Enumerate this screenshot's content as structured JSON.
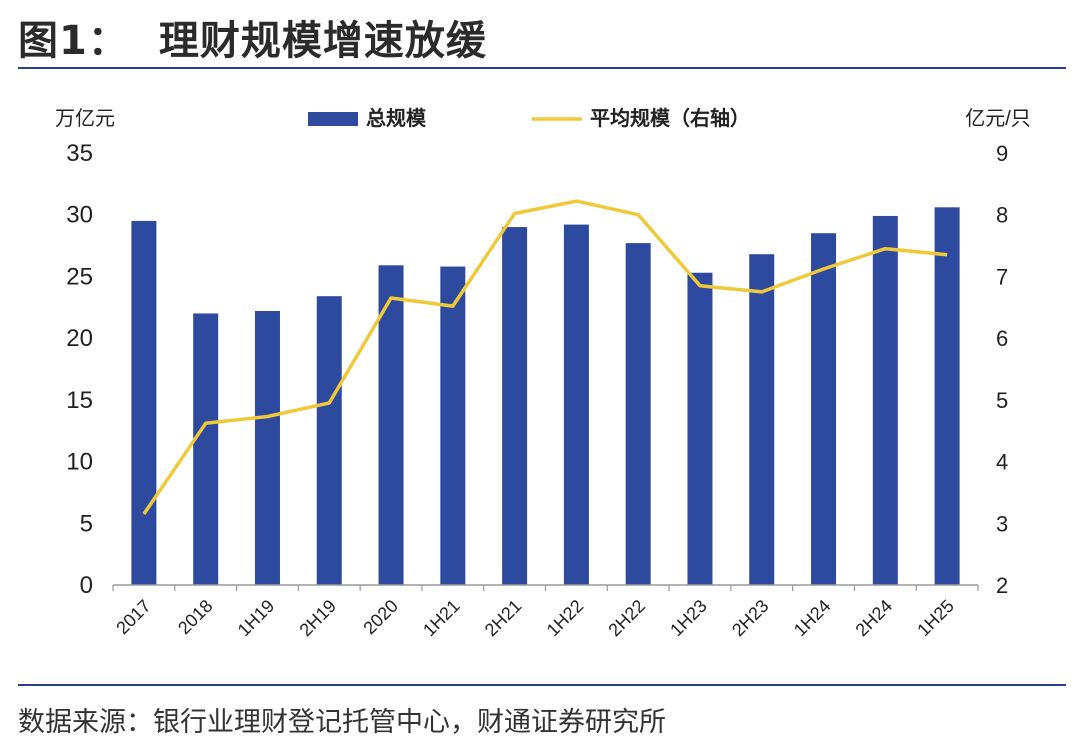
{
  "header": {
    "figure_label": "图1：",
    "title": "理财规模增速放缓"
  },
  "footer": {
    "source": "数据来源：银行业理财登记托管中心，财通证券研究所"
  },
  "colors": {
    "bar": "#2e4a9e",
    "line": "#f0c93a",
    "rule": "#2b3f8f",
    "axis": "#999999",
    "text": "#222222"
  },
  "chart_data": {
    "type": "bar+line",
    "categories": [
      "2017",
      "2018",
      "1H19",
      "2H19",
      "2020",
      "1H21",
      "2H21",
      "1H22",
      "2H22",
      "1H23",
      "2H23",
      "1H24",
      "2H24",
      "1H25"
    ],
    "series": [
      {
        "name": "总规模",
        "type": "bar",
        "axis": "left",
        "values": [
          29.5,
          22.0,
          22.2,
          23.4,
          25.9,
          25.8,
          29.0,
          29.2,
          27.7,
          25.3,
          26.8,
          28.5,
          29.9,
          30.6
        ]
      },
      {
        "name": "平均规模（右轴）",
        "type": "line",
        "axis": "right",
        "values": [
          3.15,
          4.62,
          4.73,
          4.95,
          6.65,
          6.52,
          8.02,
          8.22,
          8.0,
          6.85,
          6.75,
          7.12,
          7.45,
          7.35
        ]
      }
    ],
    "y_left": {
      "label": "万亿元",
      "min": 0,
      "max": 35,
      "ticks": [
        0,
        5,
        10,
        15,
        20,
        25,
        30,
        35
      ]
    },
    "y_right": {
      "label": "亿元/只",
      "min": 2,
      "max": 9,
      "ticks": [
        2,
        3,
        4,
        5,
        6,
        7,
        8,
        9
      ]
    },
    "legend": {
      "position": "top-center"
    }
  }
}
